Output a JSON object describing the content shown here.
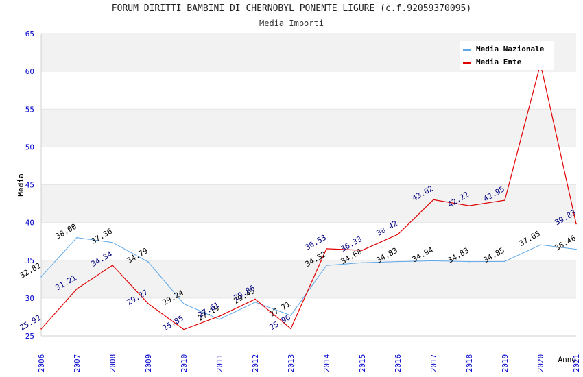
{
  "title": "FORUM DIRITTI BAMBINI DI CHERNOBYL PONENTE LIGURE (c.f.92059370095)",
  "subtitle": "Media Importi",
  "colors": {
    "media_nazionale": "#5fa8e8",
    "media_ente": "#e00000",
    "band": "#f2f2f2",
    "tick": "#0000cc",
    "label_nazionale": "#000000",
    "label_ente": "#000080"
  },
  "chart_data": {
    "type": "line",
    "title": "FORUM DIRITTI BAMBINI DI CHERNOBYL PONENTE LIGURE (c.f.92059370095)",
    "subtitle": "Media Importi",
    "xlabel": "Anno",
    "ylabel": "Media",
    "ylim": [
      25,
      65
    ],
    "yticks": [
      25,
      30,
      35,
      40,
      45,
      50,
      55,
      60,
      65
    ],
    "grid": true,
    "legend_position": "top-right",
    "x": [
      "2006",
      "2007",
      "2008",
      "2009",
      "2010",
      "2011",
      "2012",
      "2013",
      "2014",
      "2015",
      "2016",
      "2017",
      "2018",
      "2019",
      "2020",
      "2021"
    ],
    "series": [
      {
        "name": "Media Nazionale",
        "values": [
          32.82,
          38.0,
          37.36,
          34.79,
          29.24,
          27.19,
          29.45,
          27.71,
          34.32,
          34.68,
          34.83,
          34.94,
          34.83,
          34.85,
          37.05,
          36.46
        ],
        "labels": [
          "32.82",
          "38.00",
          "37.36",
          "34.79",
          "29.24",
          "27.19",
          "29.45",
          "27.71",
          "34.32",
          "34.68",
          "34.83",
          "34.94",
          "34.83",
          "34.85",
          "37.05",
          "36.46"
        ]
      },
      {
        "name": "Media Ente",
        "values": [
          25.92,
          31.21,
          34.34,
          29.27,
          25.85,
          27.61,
          29.86,
          25.96,
          36.53,
          36.33,
          38.42,
          43.02,
          42.22,
          42.95,
          61.0,
          39.83
        ],
        "labels": [
          "25.92",
          "31.21",
          "34.34",
          "29.27",
          "25.85",
          "27.61",
          "29.86",
          "25.96",
          "36.53",
          "36.33",
          "38.42",
          "43.02",
          "42.22",
          "42.95",
          "",
          "39.83"
        ]
      }
    ]
  }
}
